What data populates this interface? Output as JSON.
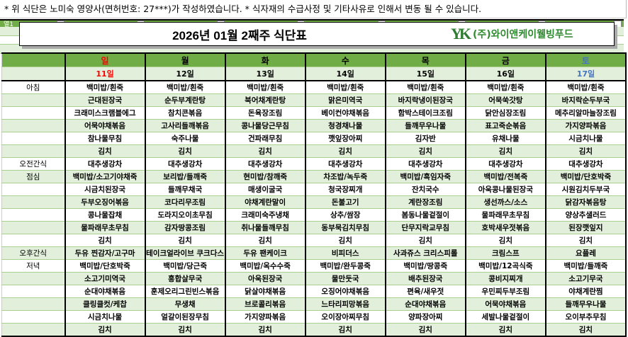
{
  "notice": "*  위 식단은 노미숙 영양사(면허번호: 27***)가 작성하였습니다.  *  식자재의 수급사정 및 기타사유로 인해서 변동 될 수 있습니다.",
  "filter_label": "열1",
  "title": "2026년 01월 2째주 식단표",
  "company": "(주)와이앤케이웰빙푸드",
  "logo_text": "YK",
  "colors": {
    "header_green": "#70ad47",
    "band_green": "#e2efda",
    "sunday": "#ff0000",
    "saturday": "#4472c4",
    "logo": "#2e8b2e"
  },
  "days": [
    "일",
    "월",
    "화",
    "수",
    "목",
    "금",
    "토"
  ],
  "dates": [
    "11일",
    "12일",
    "13일",
    "14일",
    "15일",
    "16일",
    "17일"
  ],
  "meals": [
    {
      "label": "아침",
      "rows": [
        [
          "백미밥/흰죽",
          "백미밥/흰죽",
          "백미밥/흰죽",
          "백미밥/흰죽",
          "백미밥/흰죽",
          "백미밥/흰죽",
          "백미밥/흰죽"
        ],
        [
          "근대된장국",
          "순두부계란탕",
          "북어채계란탕",
          "맑은미역국",
          "바지락냉이된장국",
          "어묵쑥갓탕",
          "바지락순두부국"
        ],
        [
          "크래미스크램블에그",
          "참치콘볶음",
          "돈육장조림",
          "베이컨야채볶음",
          "함박스테이크조림",
          "닭안심장조림",
          "메추리알마늘장조림"
        ],
        [
          "어묵야채볶음",
          "고사리들깨볶음",
          "콩나물당근무침",
          "청경채나물",
          "들깨무우나물",
          "표고죽순볶음",
          "가지양파볶음"
        ],
        [
          "참나물무침",
          "숙주나물",
          "건파래무침",
          "깻잎장아찌",
          "김자반",
          "유채나물",
          "시금치나물"
        ],
        [
          "김치",
          "김치",
          "김치",
          "김치",
          "김치",
          "김치",
          "김치"
        ]
      ]
    },
    {
      "label": "오전간식",
      "rows": [
        [
          "대추생강차",
          "대추생강차",
          "대추생강차",
          "대추생강차",
          "대추생강차",
          "대추생강차",
          "대추생강차"
        ]
      ]
    },
    {
      "label": "점심",
      "rows": [
        [
          "백미밥/소고기야채죽",
          "보리밥/들깨죽",
          "현미밥/참깨죽",
          "차조밥/녹두죽",
          "백미밥/흑임자죽",
          "백미밥/전복죽",
          "백미밥/단호박죽"
        ],
        [
          "시금치된장국",
          "들깨무채국",
          "매생이굴국",
          "청국장찌개",
          "잔치국수",
          "아욱콩나물된장국",
          "시원김치두부국"
        ],
        [
          "두부오징어볶음",
          "코다리무조림",
          "야채계란말이",
          "돈불고기",
          "계란장조림",
          "생선까스/소스",
          "닭감자볶음탕"
        ],
        [
          "콩나물잡채",
          "도라지오이초무침",
          "크래미숙주냉채",
          "상추/쌈장",
          "봄동나물겉절이",
          "물파래무초무침",
          "양상추샐러드"
        ],
        [
          "물파래무초무침",
          "감자땅콩조림",
          "취나물들깨무침",
          "동부묵김치무침",
          "단무지락교무침",
          "호박새우젓볶음",
          "된장깻잎지"
        ],
        [
          "김치",
          "김치",
          "김치",
          "김치",
          "김치",
          "김치",
          "김치"
        ]
      ]
    },
    {
      "label": "오후간식",
      "rows": [
        [
          "두유 찐감자/고구마",
          "테이크얼라이브 쿠크다스",
          "두유 팬케이크",
          "비피더스",
          "사과쥬스 크리스피롤",
          "크림스프",
          "요플레"
        ]
      ]
    },
    {
      "label": "저녁",
      "rows": [
        [
          "백미밥/단호박죽",
          "백미밥/당근죽",
          "백미밥/옥수수죽",
          "백미밥/완두콩죽",
          "백미밥/땅콩죽",
          "백미밥/12곡식죽",
          "백미밥/들깨죽"
        ],
        [
          "소고기미역국",
          "흥합살무국",
          "아욱된장국",
          "물만둣국",
          "배추된장국",
          "콩비지찌개",
          "소고기무국"
        ],
        [
          "순대야채볶음",
          "훈제오리그린빈스볶음",
          "닭살야채볶음",
          "오징어야채볶음",
          "편육/새우젓",
          "우민찌두부조림",
          "야채계란찜"
        ],
        [
          "클링클컷/케찹",
          "무생채",
          "브로콜리볶음",
          "느타리피망볶음",
          "순대야채볶음",
          "어묵야채볶음",
          "들깨무우나물"
        ],
        [
          "시금치나물",
          "얼갈이된장무침",
          "가지양파볶음",
          "오이장아찌무침",
          "양파장아찌",
          "세발나물겉절이",
          "오이부추무침"
        ],
        [
          "김치",
          "김치",
          "김치",
          "김치",
          "김치",
          "김치",
          "김치"
        ]
      ]
    }
  ]
}
